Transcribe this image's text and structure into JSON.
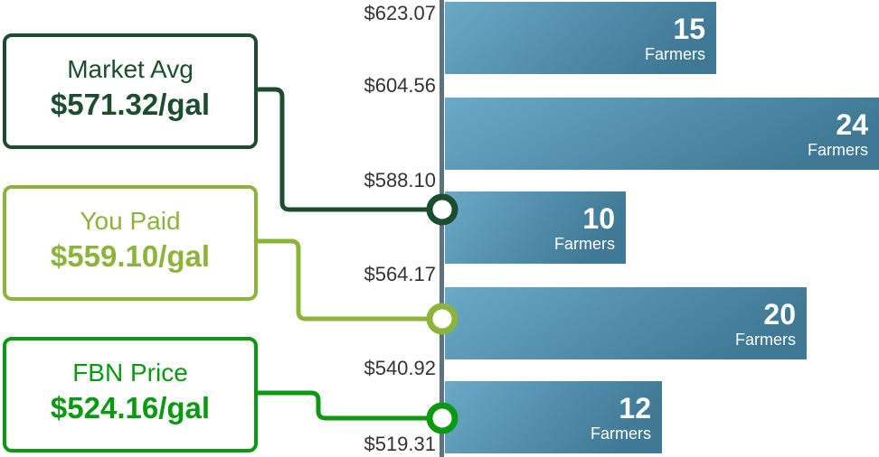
{
  "chart_data": {
    "type": "bar",
    "orientation": "horizontal",
    "tick_labels": [
      "$623.07",
      "$604.56",
      "$588.10",
      "$564.17",
      "$540.92",
      "$519.31"
    ],
    "bins": [
      {
        "range": [
          "$604.56",
          "$623.07"
        ],
        "value": 15,
        "unit": "Farmers"
      },
      {
        "range": [
          "$588.10",
          "$604.56"
        ],
        "value": 24,
        "unit": "Farmers"
      },
      {
        "range": [
          "$564.17",
          "$588.10"
        ],
        "value": 10,
        "unit": "Farmers"
      },
      {
        "range": [
          "$540.92",
          "$564.17"
        ],
        "value": 20,
        "unit": "Farmers"
      },
      {
        "range": [
          "$519.31",
          "$540.92"
        ],
        "value": 12,
        "unit": "Farmers"
      }
    ],
    "markers": [
      {
        "label": "Market Avg",
        "value": "$571.32/gal",
        "color": "#1b4d2e"
      },
      {
        "label": "You Paid",
        "value": "$559.10/gal",
        "color": "#8db43a"
      },
      {
        "label": "FBN Price",
        "value": "$524.16/gal",
        "color": "#0b9912"
      }
    ],
    "bar_color": [
      "#6aa9c7",
      "#3f7995"
    ],
    "axis_color": "#5e7380"
  }
}
